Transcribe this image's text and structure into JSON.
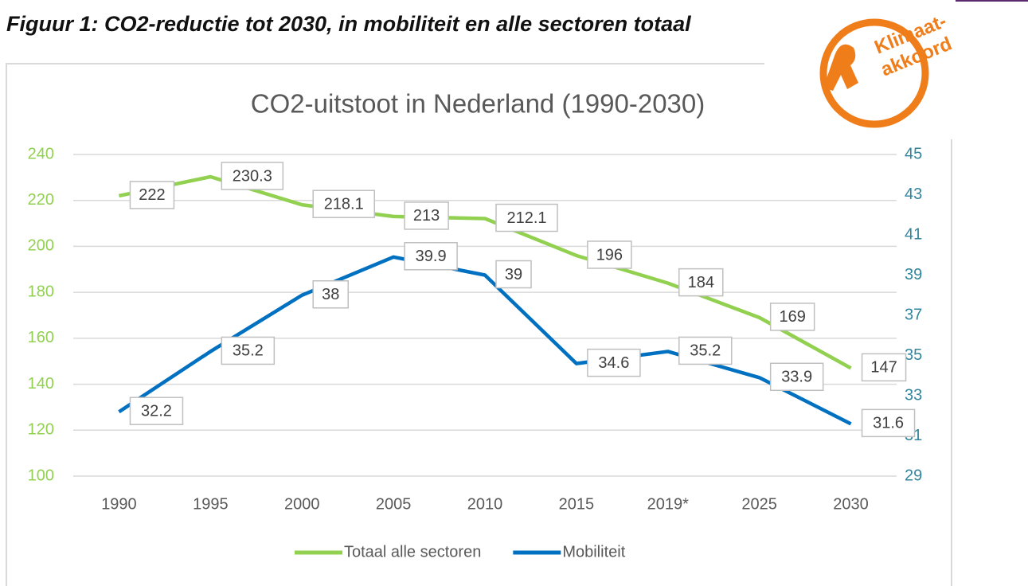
{
  "caption": "Figuur 1: CO2-reductie tot 2030, in mobiliteit en alle sectoren totaal",
  "logo": [
    "Klimaat-",
    "akkoord"
  ],
  "chart_data": {
    "type": "line",
    "title": "CO2-uitstoot in Nederland (1990-2030)",
    "categories": [
      "1990",
      "1995",
      "2000",
      "2005",
      "2010",
      "2015",
      "2019*",
      "2025",
      "2030"
    ],
    "series": [
      {
        "name": "Totaal alle sectoren",
        "color": "#92d050",
        "values": [
          222,
          230.3,
          218.1,
          213,
          212.1,
          196,
          184,
          169,
          147
        ]
      },
      {
        "name": "Mobiliteit",
        "color": "#0070c0",
        "axis": "y2",
        "values": [
          32.2,
          35.2,
          38,
          39.9,
          39,
          34.6,
          35.2,
          33.9,
          31.6
        ]
      }
    ],
    "ylim": [
      100,
      240
    ],
    "yticks": [
      100,
      120,
      140,
      160,
      180,
      200,
      220,
      240
    ],
    "y2lim": [
      29,
      45
    ],
    "y2ticks": [
      29,
      31,
      33,
      35,
      37,
      39,
      41,
      43,
      45
    ],
    "grid": true,
    "legend": "bottom"
  }
}
